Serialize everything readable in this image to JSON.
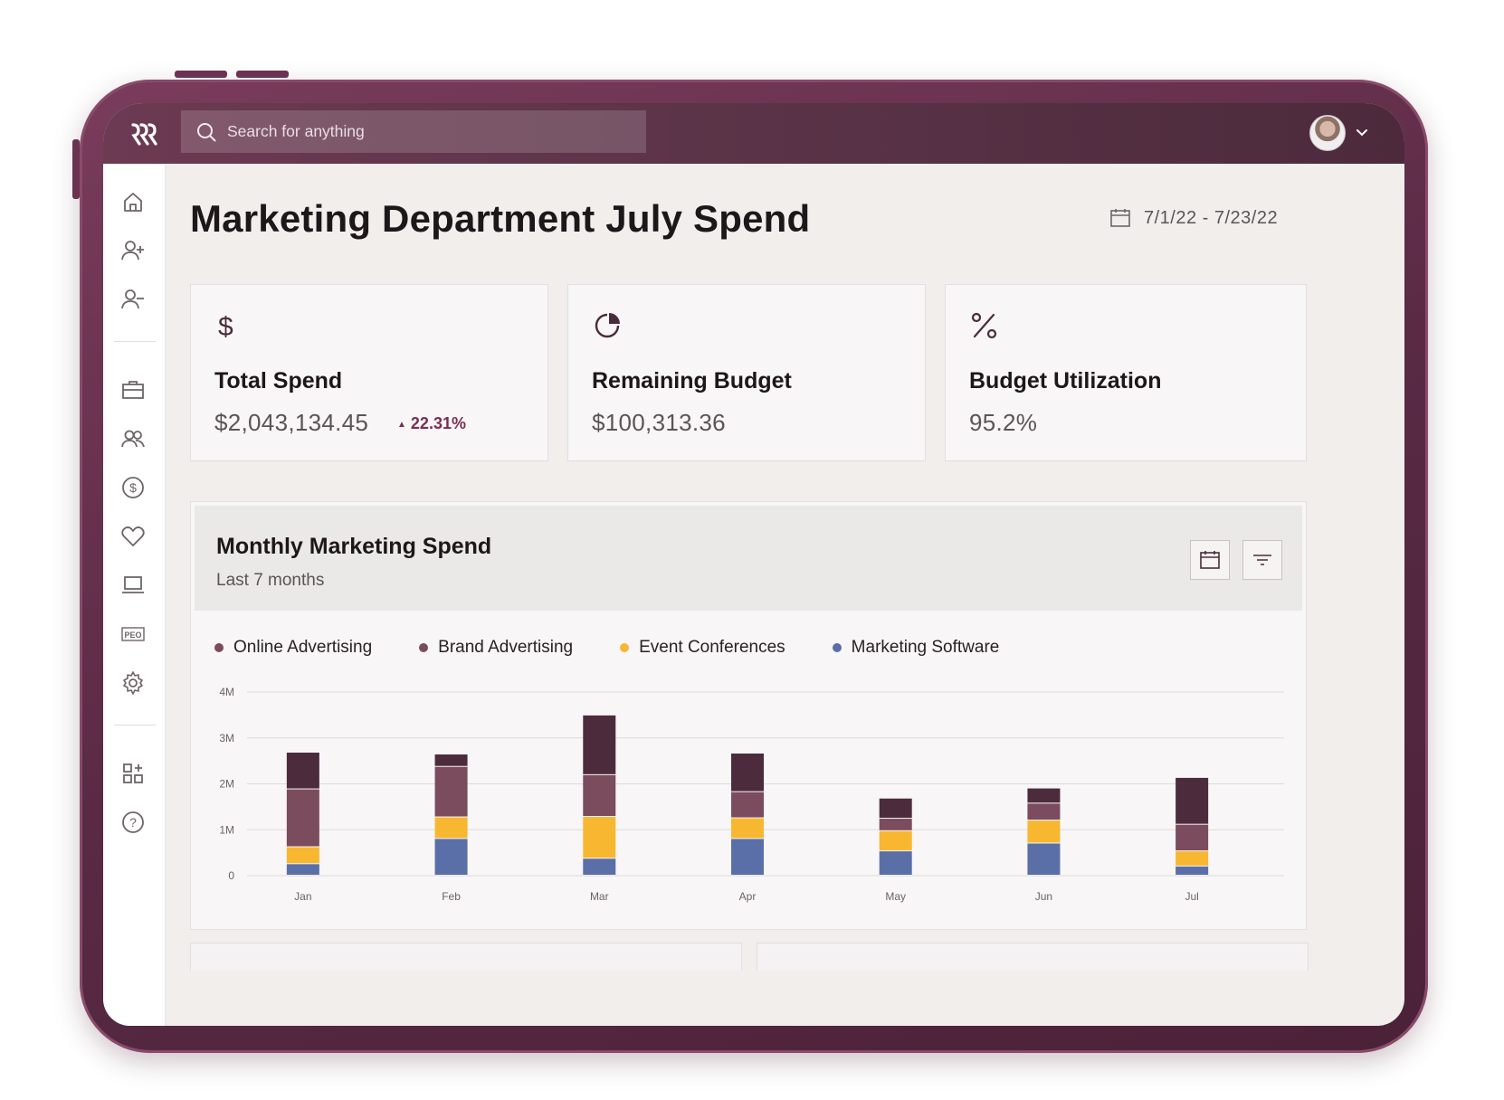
{
  "search": {
    "placeholder": "Search for anything"
  },
  "header": {
    "title": "Marketing Department July Spend",
    "date_range": "7/1/22 - 7/23/22"
  },
  "sidebar": {
    "items": [
      {
        "icon": "home-icon"
      },
      {
        "icon": "add-user-icon"
      },
      {
        "icon": "remove-user-icon"
      },
      {
        "icon": "briefcase-icon"
      },
      {
        "icon": "people-icon"
      },
      {
        "icon": "dollar-circle-icon"
      },
      {
        "icon": "heart-icon"
      },
      {
        "icon": "laptop-icon"
      },
      {
        "icon": "peo-icon",
        "label": "PEO"
      },
      {
        "icon": "gear-icon"
      },
      {
        "icon": "apps-icon"
      },
      {
        "icon": "help-icon"
      }
    ]
  },
  "cards": [
    {
      "label": "Total Spend",
      "value": "$2,043,134.45",
      "delta": "22.31%",
      "icon": "dollar-icon"
    },
    {
      "label": "Remaining Budget",
      "value": "$100,313.36",
      "icon": "pie-chart-icon"
    },
    {
      "label": "Budget Utilization",
      "value": "95.2%",
      "icon": "percent-icon"
    }
  ],
  "panel": {
    "title": "Monthly Marketing Spend",
    "subtitle": "Last 7 months"
  },
  "colors": {
    "online": "#4c2c3c",
    "brand": "#7b4b5e",
    "event": "#f7b731",
    "software": "#5a6fa8",
    "accent": "#7a2e52"
  },
  "chart_data": {
    "type": "bar",
    "stacked": true,
    "categories": [
      "Jan",
      "Feb",
      "Mar",
      "Apr",
      "May",
      "Jun",
      "Jul"
    ],
    "series": [
      {
        "name": "Marketing Software",
        "values": [
          0.25,
          0.8,
          0.37,
          0.8,
          0.53,
          0.7,
          0.2
        ]
      },
      {
        "name": "Event Conferences",
        "values": [
          0.37,
          0.47,
          0.91,
          0.45,
          0.44,
          0.5,
          0.33
        ]
      },
      {
        "name": "Brand Advertising",
        "values": [
          1.26,
          1.1,
          0.91,
          0.57,
          0.27,
          0.37,
          0.58
        ]
      },
      {
        "name": "Online Advertising",
        "values": [
          0.8,
          0.27,
          1.3,
          0.84,
          0.44,
          0.33,
          1.02
        ]
      }
    ],
    "legend_order": [
      "Online Advertising",
      "Brand Advertising",
      "Event Conferences",
      "Marketing Software"
    ],
    "yticks": [
      "0",
      "1M",
      "2M",
      "3M",
      "4M"
    ],
    "ylim": [
      0,
      4
    ],
    "units": "millions",
    "grid": true,
    "legend": "top-left"
  }
}
